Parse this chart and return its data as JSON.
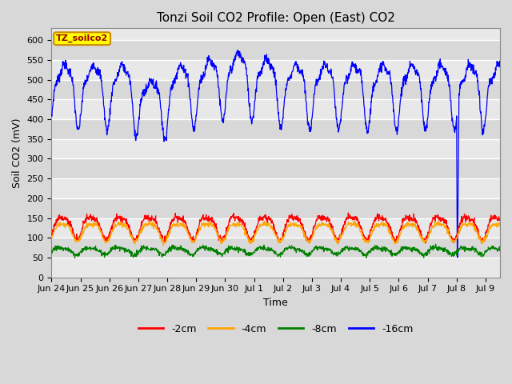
{
  "title": "Tonzi Soil CO2 Profile: Open (East) CO2",
  "ylabel": "Soil CO2 (mV)",
  "xlabel": "Time",
  "legend_label": "TZ_soilco2",
  "series_labels": [
    "-2cm",
    "-4cm",
    "-8cm",
    "-16cm"
  ],
  "series_colors": [
    "red",
    "orange",
    "green",
    "blue"
  ],
  "ylim": [
    0,
    630
  ],
  "yticks": [
    0,
    50,
    100,
    150,
    200,
    250,
    300,
    350,
    400,
    450,
    500,
    550,
    600
  ],
  "xtick_labels": [
    "Jun 24",
    "Jun 25",
    "Jun 26",
    "Jun 27",
    "Jun 28",
    "Jun 29",
    "Jun 30",
    "Jul 1",
    "Jul 2",
    "Jul 3",
    "Jul 4",
    "Jul 5",
    "Jul 6",
    "Jul 7",
    "Jul 8",
    "Jul 9"
  ],
  "n_days": 15.5,
  "background_color": "#d8d8d8",
  "plot_bg_color": "#e8e8e8",
  "band_color_light": "#e8e8e8",
  "band_color_dark": "#d8d8d8",
  "grid_color": "white",
  "title_fontsize": 11,
  "axis_label_fontsize": 9,
  "tick_fontsize": 8,
  "figsize": [
    6.4,
    4.8
  ],
  "dpi": 100
}
